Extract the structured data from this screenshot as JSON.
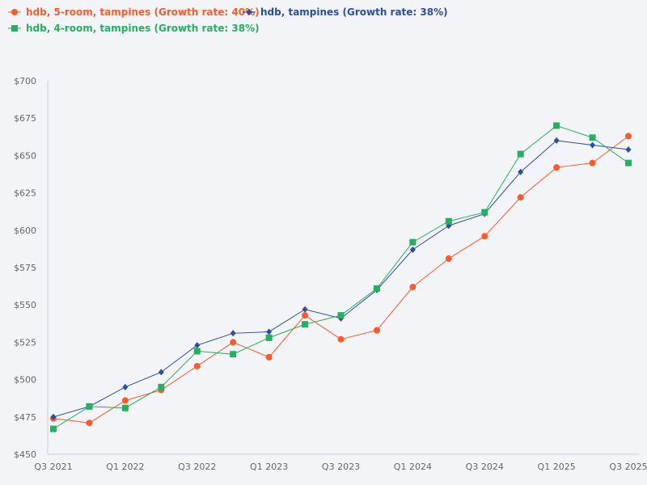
{
  "chart_data": {
    "type": "line",
    "title": "",
    "xlabel": "",
    "ylabel": "",
    "ylim": [
      450,
      700
    ],
    "yticks": [
      "$450",
      "$475",
      "$500",
      "$525",
      "$550",
      "$575",
      "$600",
      "$625",
      "$650",
      "$675",
      "$700"
    ],
    "yticks_values": [
      450,
      475,
      500,
      525,
      550,
      575,
      600,
      625,
      650,
      675,
      700
    ],
    "x": [
      "Q3 2021",
      "Q4 2021",
      "Q1 2022",
      "Q2 2022",
      "Q3 2022",
      "Q4 2022",
      "Q1 2023",
      "Q2 2023",
      "Q3 2023",
      "Q4 2023",
      "Q1 2024",
      "Q2 2024",
      "Q3 2024",
      "Q4 2024",
      "Q1 2025",
      "Q2 2025",
      "Q3 2025"
    ],
    "xticks": [
      "Q3 2021",
      "Q1 2022",
      "Q3 2022",
      "Q1 2023",
      "Q3 2023",
      "Q1 2024",
      "Q3 2024",
      "Q1 2025",
      "Q3 2025"
    ],
    "grid": false,
    "legend_position": "top-left",
    "series": [
      {
        "name": "hdb, 5-room, tampines (Growth rate: 40%)",
        "color": "#fc5a2a",
        "marker": "circle",
        "values": [
          474,
          471,
          486,
          493,
          509,
          525,
          515,
          543,
          527,
          533,
          562,
          581,
          596,
          622,
          642,
          645,
          663
        ]
      },
      {
        "name": "hdb, tampines (Growth rate: 38%)",
        "color": "#2a4fa0",
        "marker": "diamond",
        "values": [
          475,
          482,
          495,
          505,
          523,
          531,
          532,
          547,
          541,
          560,
          587,
          603,
          611,
          639,
          660,
          657,
          654
        ]
      },
      {
        "name": "hdb, 4-room, tampines (Growth rate: 38%)",
        "color": "#27ae60",
        "marker": "square",
        "values": [
          467,
          482,
          481,
          495,
          519,
          517,
          528,
          537,
          543,
          561,
          592,
          606,
          612,
          651,
          670,
          662,
          645
        ]
      }
    ]
  }
}
